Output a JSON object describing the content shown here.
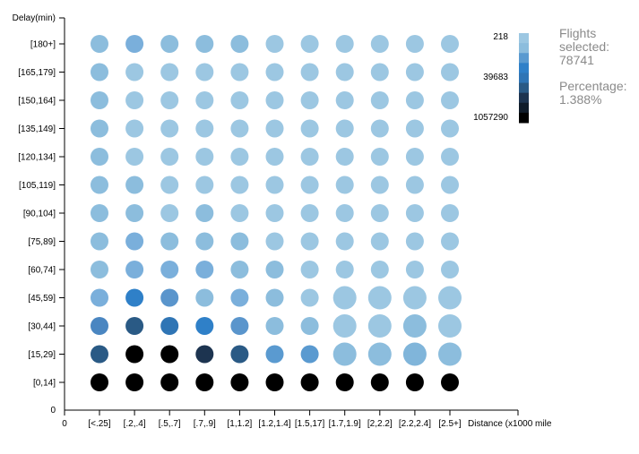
{
  "chart_data": {
    "type": "scatter",
    "xlabel": "Distance (x1000 mile",
    "ylabel": "Delay(min)",
    "x_origin_label": "0",
    "y_origin_label": "0",
    "x_categories": [
      "[<.25]",
      "[.2,.4]",
      "[.5,.7]",
      "[.7,.9]",
      "[1,1.2]",
      "[1.2,1.4]",
      "[1.5,17]",
      "[1.7,1.9]",
      "[2,2.2]",
      "[2.2,2.4]",
      "[2.5+]"
    ],
    "y_categories": [
      "[0,14]",
      "[15,29]",
      "[30,44]",
      "[45,59]",
      "[60,74]",
      "[75,89]",
      "[90,104]",
      "[105,119]",
      "[120,134]",
      "[135,149]",
      "[150,164]",
      "[165,179]",
      "[180+]"
    ],
    "size_levels": [
      [
        1,
        1,
        1,
        1,
        1,
        1,
        1,
        1,
        1,
        1,
        1
      ],
      [
        1,
        1,
        1,
        1,
        1,
        1,
        1,
        1.3,
        1.3,
        1.3,
        1.3
      ],
      [
        1,
        1,
        1,
        1,
        1,
        1,
        1,
        1.3,
        1.3,
        1.3,
        1.3
      ],
      [
        1,
        1,
        1,
        1,
        1,
        1,
        1,
        1.3,
        1.3,
        1.3,
        1.3
      ],
      [
        1,
        1,
        1,
        1,
        1,
        1,
        1,
        1,
        1,
        1,
        1
      ],
      [
        1,
        1,
        1,
        1,
        1,
        1,
        1,
        1,
        1,
        1,
        1
      ],
      [
        1,
        1,
        1,
        1,
        1,
        1,
        1,
        1,
        1,
        1,
        1
      ],
      [
        1,
        1,
        1,
        1,
        1,
        1,
        1,
        1,
        1,
        1,
        1
      ],
      [
        1,
        1,
        1,
        1,
        1,
        1,
        1,
        1,
        1,
        1,
        1
      ],
      [
        1,
        1,
        1,
        1,
        1,
        1,
        1,
        1,
        1,
        1,
        1
      ],
      [
        1,
        1,
        1,
        1,
        1,
        1,
        1,
        1,
        1,
        1,
        1
      ],
      [
        1,
        1,
        1,
        1,
        1,
        1,
        1,
        1,
        1,
        1,
        1
      ],
      [
        1,
        1,
        1,
        1,
        1,
        1,
        1,
        1,
        1,
        1,
        1
      ]
    ],
    "colors": [
      [
        "#000000",
        "#000000",
        "#000000",
        "#000000",
        "#000000",
        "#000000",
        "#000000",
        "#000000",
        "#000000",
        "#000000",
        "#000000"
      ],
      [
        "#2a5a85",
        "#000000",
        "#000000",
        "#1d3450",
        "#2a5a85",
        "#5a9ad0",
        "#5a9ad0",
        "#8cbddd",
        "#8cbddd",
        "#80b5da",
        "#8cbddd"
      ],
      [
        "#4a86c1",
        "#2a5a85",
        "#2f75b5",
        "#2f80c8",
        "#5a95cc",
        "#8cbddd",
        "#8cbddd",
        "#9cc7e2",
        "#9cc7e2",
        "#8cbddd",
        "#9cc7e2"
      ],
      [
        "#7aafdb",
        "#2f80c8",
        "#5a95cc",
        "#8cbddd",
        "#7aafdb",
        "#8cbddd",
        "#9cc7e2",
        "#9cc7e2",
        "#9cc7e2",
        "#9cc7e2",
        "#9cc7e2"
      ],
      [
        "#8cbddd",
        "#7aafdb",
        "#7aafdb",
        "#7aafdb",
        "#8cbddd",
        "#8cbddd",
        "#9cc7e2",
        "#9cc7e2",
        "#9cc7e2",
        "#9cc7e2",
        "#9cc7e2"
      ],
      [
        "#8cbddd",
        "#7aafdb",
        "#8cbddd",
        "#8cbddd",
        "#8cbddd",
        "#9cc7e2",
        "#9cc7e2",
        "#9cc7e2",
        "#9cc7e2",
        "#9cc7e2",
        "#9cc7e2"
      ],
      [
        "#8cbddd",
        "#8cbddd",
        "#9cc7e2",
        "#8cbddd",
        "#9cc7e2",
        "#9cc7e2",
        "#9cc7e2",
        "#9cc7e2",
        "#9cc7e2",
        "#9cc7e2",
        "#9cc7e2"
      ],
      [
        "#8cbddd",
        "#8cbddd",
        "#9cc7e2",
        "#9cc7e2",
        "#9cc7e2",
        "#9cc7e2",
        "#9cc7e2",
        "#9cc7e2",
        "#9cc7e2",
        "#9cc7e2",
        "#9cc7e2"
      ],
      [
        "#8cbddd",
        "#9cc7e2",
        "#9cc7e2",
        "#9cc7e2",
        "#9cc7e2",
        "#9cc7e2",
        "#9cc7e2",
        "#9cc7e2",
        "#9cc7e2",
        "#9cc7e2",
        "#9cc7e2"
      ],
      [
        "#8cbddd",
        "#9cc7e2",
        "#9cc7e2",
        "#9cc7e2",
        "#9cc7e2",
        "#9cc7e2",
        "#9cc7e2",
        "#9cc7e2",
        "#9cc7e2",
        "#9cc7e2",
        "#9cc7e2"
      ],
      [
        "#8cbddd",
        "#9cc7e2",
        "#9cc7e2",
        "#9cc7e2",
        "#9cc7e2",
        "#9cc7e2",
        "#9cc7e2",
        "#9cc7e2",
        "#9cc7e2",
        "#9cc7e2",
        "#9cc7e2"
      ],
      [
        "#8cbddd",
        "#9cc7e2",
        "#9cc7e2",
        "#9cc7e2",
        "#9cc7e2",
        "#9cc7e2",
        "#9cc7e2",
        "#9cc7e2",
        "#9cc7e2",
        "#9cc7e2",
        "#9cc7e2"
      ],
      [
        "#8cbddd",
        "#7aafdb",
        "#8cbddd",
        "#8cbddd",
        "#8cbddd",
        "#9cc7e2",
        "#9cc7e2",
        "#9cc7e2",
        "#9cc7e2",
        "#9cc7e2",
        "#9cc7e2"
      ]
    ],
    "legend": {
      "labels": [
        "218",
        "39683",
        "1057290"
      ],
      "colors": [
        "#9cc7e2",
        "#8cbddd",
        "#5a9ad0",
        "#2f80c8",
        "#2f75b5",
        "#2a5a85",
        "#1d3450",
        "#101c2a",
        "#000000"
      ]
    }
  },
  "info": {
    "flights_label": "Flights selected:",
    "flights_value": "78741",
    "percentage_label": "Percentage:",
    "percentage_value": "1.388%"
  }
}
